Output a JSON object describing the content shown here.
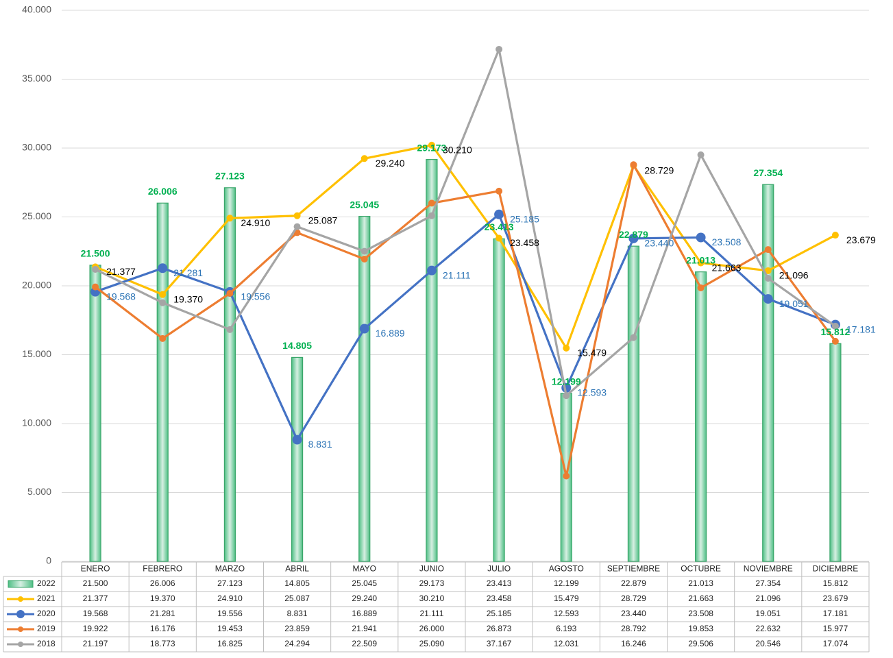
{
  "chart_data": {
    "type": "combo",
    "categories": [
      "ENERO",
      "FEBRERO",
      "MARZO",
      "ABRIL",
      "MAYO",
      "JUNIO",
      "JULIO",
      "AGOSTO",
      "SEPTIEMBRE",
      "OCTUBRE",
      "NOVIEMBRE",
      "DICIEMBRE"
    ],
    "ylim": [
      0,
      40000
    ],
    "yticks": [
      0,
      {
        "value": 5000,
        "label": "5.000"
      },
      {
        "value": 10000,
        "label": "10.000"
      },
      {
        "value": 15000,
        "label": "15.000"
      },
      {
        "value": 20000,
        "label": "20.000"
      },
      {
        "value": 25000,
        "label": "25.000"
      },
      {
        "value": 30000,
        "label": "30.000"
      },
      {
        "value": 35000,
        "label": "35.000"
      },
      {
        "value": 40000,
        "label": "40.000"
      }
    ],
    "grid": true,
    "series": [
      {
        "name": "2022",
        "type": "bar",
        "color": "#3aa66a",
        "data_labels": true,
        "label_color": "#00b050",
        "values": [
          21500,
          26006,
          27123,
          14805,
          25045,
          29173,
          23413,
          12199,
          22879,
          21013,
          27354,
          15812
        ],
        "value_labels": [
          "21.500",
          "26.006",
          "27.123",
          "14.805",
          "25.045",
          "29.173",
          "23.413",
          "12.199",
          "22.879",
          "21.013",
          "27.354",
          "15.812"
        ]
      },
      {
        "name": "2021",
        "type": "line",
        "color": "#ffc000",
        "data_labels": true,
        "label_color": "#000000",
        "values": [
          21377,
          19370,
          24910,
          25087,
          29240,
          30210,
          23458,
          15479,
          28729,
          21663,
          21096,
          23679
        ],
        "value_labels": [
          "21.377",
          "19.370",
          "24.910",
          "25.087",
          "29.240",
          "30.210",
          "23.458",
          "15.479",
          "28.729",
          "21.663",
          "21.096",
          "23.679"
        ]
      },
      {
        "name": "2020",
        "type": "line",
        "color": "#4472c4",
        "data_labels": true,
        "label_color": "#2e75b6",
        "values": [
          19568,
          21281,
          19556,
          8831,
          16889,
          21111,
          25185,
          12593,
          23440,
          23508,
          19051,
          17181
        ],
        "value_labels": [
          "19.568",
          "21.281",
          "19.556",
          "8.831",
          "16.889",
          "21.111",
          "25.185",
          "12.593",
          "23.440",
          "23.508",
          "19.051",
          "17.181"
        ]
      },
      {
        "name": "2019",
        "type": "line",
        "color": "#ed7d31",
        "data_labels": false,
        "values": [
          19922,
          16176,
          19453,
          23859,
          21941,
          26000,
          26873,
          6193,
          28792,
          19853,
          22632,
          15977
        ],
        "value_labels": [
          "19.922",
          "16.176",
          "19.453",
          "23.859",
          "21.941",
          "26.000",
          "26.873",
          "6.193",
          "28.792",
          "19.853",
          "22.632",
          "15.977"
        ]
      },
      {
        "name": "2018",
        "type": "line",
        "color": "#a5a5a5",
        "data_labels": false,
        "values": [
          21197,
          18773,
          16825,
          24294,
          22509,
          25090,
          37167,
          12031,
          16246,
          29506,
          20546,
          17074
        ],
        "value_labels": [
          "21.197",
          "18.773",
          "16.825",
          "24.294",
          "22.509",
          "25.090",
          "37.167",
          "12.031",
          "16.246",
          "29.506",
          "20.546",
          "17.074"
        ]
      }
    ]
  }
}
